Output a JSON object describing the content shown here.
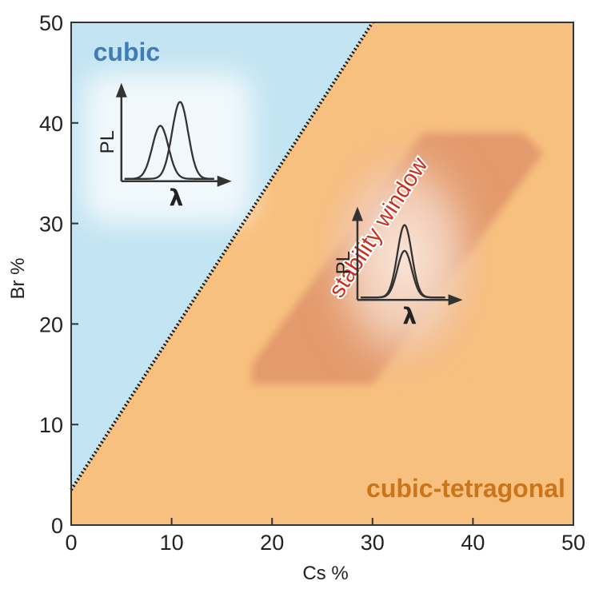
{
  "chart_data": {
    "type": "area",
    "xlabel": "Cs %",
    "ylabel": "Br %",
    "xlim": [
      0,
      50
    ],
    "ylim": [
      0,
      50
    ],
    "x_ticks": [
      "0",
      "10",
      "20",
      "30",
      "40",
      "50"
    ],
    "y_ticks": [
      "0",
      "10",
      "20",
      "30",
      "40",
      "50"
    ],
    "grid": false,
    "boundary": {
      "style": "dotted",
      "points": [
        [
          0,
          3.5
        ],
        [
          30,
          50
        ]
      ]
    },
    "regions": [
      {
        "label": "cubic",
        "side": "upper-left",
        "color": "#c3e4f2",
        "label_color": "#3f7cb8"
      },
      {
        "label": "cubic-tetragonal",
        "side": "lower-right",
        "color": "#f8c07f",
        "label_color": "#cb7418"
      }
    ],
    "stability_window": {
      "label": "stability window",
      "label_color": "#c8321e",
      "polygon": [
        [
          18,
          14
        ],
        [
          30,
          14
        ],
        [
          47,
          37
        ],
        [
          45,
          39
        ],
        [
          35,
          39
        ],
        [
          18,
          16
        ]
      ]
    },
    "insets": [
      {
        "region": "cubic",
        "ylabel": "PL",
        "xlabel": "λ",
        "peaks": [
          {
            "center": 0.4,
            "height": 0.62
          },
          {
            "center": 0.62,
            "height": 0.9
          }
        ]
      },
      {
        "region": "stability window",
        "ylabel": "PL",
        "xlabel": "λ",
        "peaks": [
          {
            "center": 0.52,
            "height": 0.9
          },
          {
            "center": 0.52,
            "height": 0.58
          }
        ]
      }
    ]
  }
}
